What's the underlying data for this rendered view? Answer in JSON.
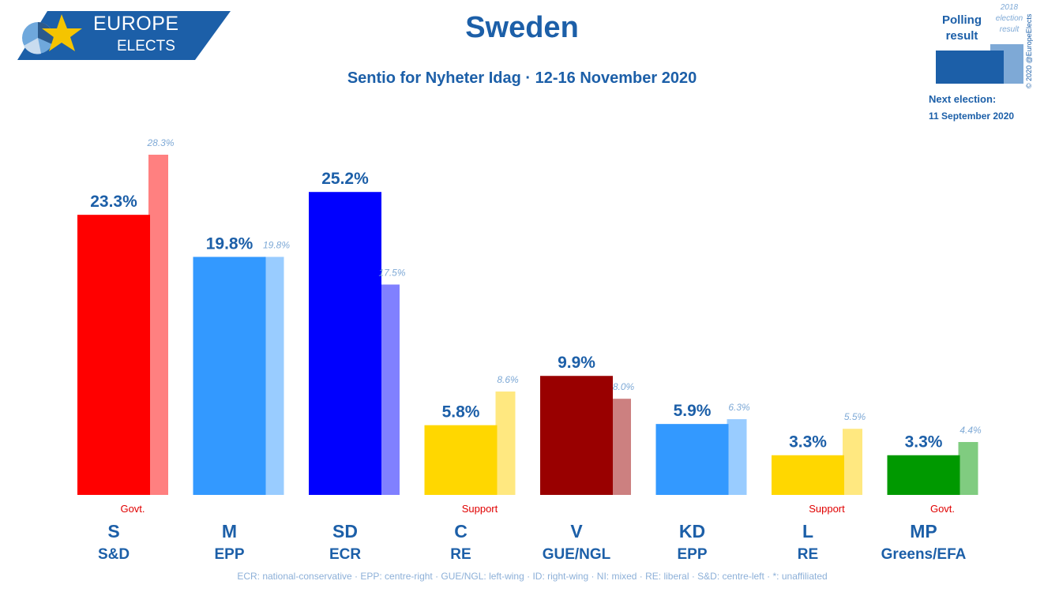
{
  "header": {
    "title": "Sweden",
    "subtitle": "Sentio for Nyheter Idag · 12-16 November 2020",
    "logo_line1": "EUROPE",
    "logo_line2": "ELECTS"
  },
  "legend": {
    "polling_label": "Polling\nresult",
    "election_label": "2018\nelection\nresult",
    "next_election_label": "Next election:",
    "next_election_date": "11 September 2020",
    "copyright": "© 2020 @EuropeElects"
  },
  "footer": "ECR: national-conservative · EPP: centre-right · GUE/NGL: left-wing · ID: right-wing · NI: mixed · RE: liberal · S&D: centre-left · *: unaffiliated",
  "colors": {
    "brand": "#1c5fa8",
    "status": "#e00000",
    "legend_poll": "#1c5fa8",
    "legend_election": "#7ea9d6"
  },
  "chart_data": {
    "type": "bar",
    "categories": [
      "S",
      "M",
      "SD",
      "C",
      "V",
      "KD",
      "L",
      "MP"
    ],
    "groups": [
      "S&D",
      "EPP",
      "ECR",
      "RE",
      "GUE/NGL",
      "EPP",
      "RE",
      "Greens/EFA"
    ],
    "status": [
      "Govt.",
      "",
      "",
      "Support",
      "",
      "",
      "Support",
      "Govt."
    ],
    "series": [
      {
        "name": "Polling result",
        "values": [
          23.3,
          19.8,
          25.2,
          5.8,
          9.9,
          5.9,
          3.3,
          3.3
        ]
      },
      {
        "name": "2018 election result",
        "values": [
          28.3,
          19.8,
          17.5,
          8.6,
          8.0,
          6.3,
          5.5,
          4.4
        ]
      }
    ],
    "poll_labels": [
      "23.3%",
      "19.8%",
      "25.2%",
      "5.8%",
      "9.9%",
      "5.9%",
      "3.3%",
      "3.3%"
    ],
    "election_labels": [
      "28.3%",
      "19.8%",
      "17.5%",
      "8.6%",
      "8.0%",
      "6.3%",
      "5.5%",
      "4.4%"
    ],
    "poll_colors": [
      "#ff0000",
      "#3399ff",
      "#0000ff",
      "#ffd700",
      "#990000",
      "#3399ff",
      "#ffd700",
      "#009900"
    ],
    "election_colors": [
      "#ff8080",
      "#99ccff",
      "#8080ff",
      "#ffe880",
      "#cc8080",
      "#99ccff",
      "#ffe880",
      "#80cc80"
    ],
    "ylim": [
      0,
      28.3
    ],
    "grid": false
  }
}
